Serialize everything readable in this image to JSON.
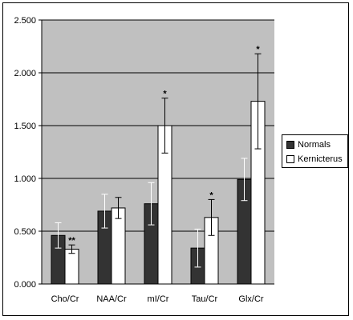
{
  "chart_data": {
    "type": "bar",
    "categories": [
      "Cho/Cr",
      "NAA/Cr",
      "mI/Cr",
      "Tau/Cr",
      "Glx/Cr"
    ],
    "series": [
      {
        "name": "Normals",
        "values": [
          0.46,
          0.69,
          0.76,
          0.34,
          0.99
        ],
        "errors": [
          0.12,
          0.16,
          0.2,
          0.18,
          0.2
        ],
        "color": "#333333",
        "sig": [
          "",
          "",
          "",
          "",
          ""
        ]
      },
      {
        "name": "Kernicterus",
        "values": [
          0.33,
          0.72,
          1.5,
          0.63,
          1.73
        ],
        "errors": [
          0.04,
          0.1,
          0.26,
          0.17,
          0.45
        ],
        "color": "#ffffff",
        "sig": [
          "**",
          "",
          "*",
          "*",
          "*"
        ]
      }
    ],
    "ylim": [
      0,
      2.5
    ],
    "yticks": [
      "0.000",
      "0.500",
      "1.000",
      "1.500",
      "2.000",
      "2.500"
    ],
    "ytick_values": [
      0,
      0.5,
      1.0,
      1.5,
      2.0,
      2.5
    ],
    "grid": true,
    "legend_position": "right",
    "plot_background": "#c0c0c0"
  }
}
